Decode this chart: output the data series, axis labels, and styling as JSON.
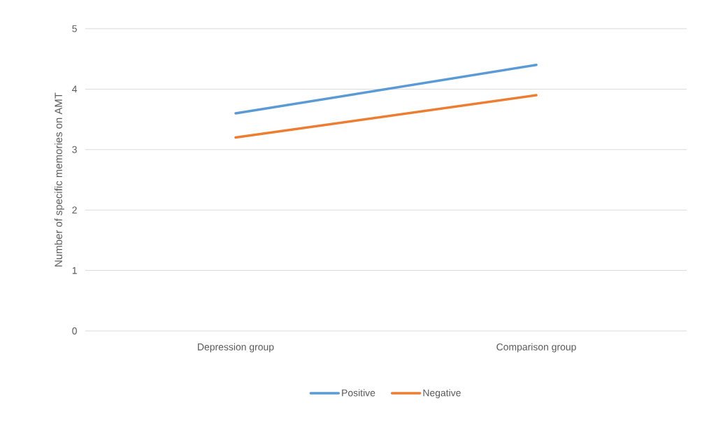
{
  "chart_data": {
    "type": "line",
    "ylabel": "Number of specific memories on AMT",
    "categories": [
      "Depression group",
      "Comparison group"
    ],
    "series": [
      {
        "name": "Positive",
        "color": "#5b9bd5",
        "values": [
          3.6,
          4.4
        ]
      },
      {
        "name": "Negative",
        "color": "#ed7d31",
        "values": [
          3.2,
          3.9
        ]
      }
    ],
    "ylim": [
      0,
      5
    ],
    "yticks": [
      0,
      1,
      2,
      3,
      4,
      5
    ],
    "grid": "y",
    "legend": "bottom"
  }
}
